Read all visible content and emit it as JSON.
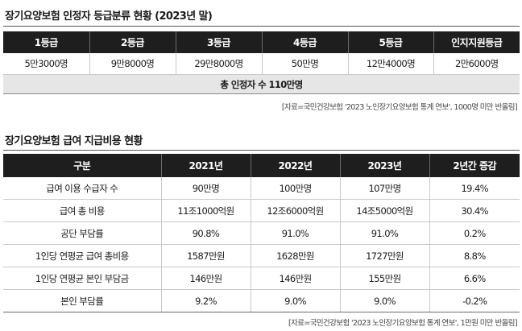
{
  "section1": {
    "title": "장기요양보험 인정자 등급분류 현황 (2023년 말)",
    "headers": [
      "1등급",
      "2등급",
      "3등급",
      "4등급",
      "5등급",
      "인지지원등급"
    ],
    "values": [
      "5만3000명",
      "9만8000명",
      "29만8000명",
      "50만명",
      "12만4000명",
      "2만6000명"
    ],
    "total": "총 인정자 수 110만명",
    "source": "[자료=국민건강보험 '2023 노인장기요양보험 통계 연보', 1000명 미만 반올림]"
  },
  "section2": {
    "title": "장기요양보험 급여 지급비용 현황",
    "headers": [
      "구분",
      "2021년",
      "2022년",
      "2023년",
      "2년간 증감"
    ],
    "rows": [
      [
        "급여 이용 수급자 수",
        "90만명",
        "100만명",
        "107만명",
        "19.4%"
      ],
      [
        "급여 총 비용",
        "11조1000억원",
        "12조6000억원",
        "14조5000억원",
        "30.4%"
      ],
      [
        "공단 부담률",
        "90.8%",
        "91.0%",
        "91.0%",
        "0.2%"
      ],
      [
        "1인당 연평균 급여 총비용",
        "1587만원",
        "1628만원",
        "1727만원",
        "8.8%"
      ],
      [
        "1인당 연평균 본인 부담금",
        "146만원",
        "146만원",
        "155만원",
        "6.6%"
      ],
      [
        "본인 부담률",
        "9.2%",
        "9.0%",
        "9.0%",
        "-0.2%"
      ]
    ],
    "source": "[자료=국민건강보험 '2023 노인장기요양보험 통계 연보', 1만원 미만 반올림]"
  }
}
